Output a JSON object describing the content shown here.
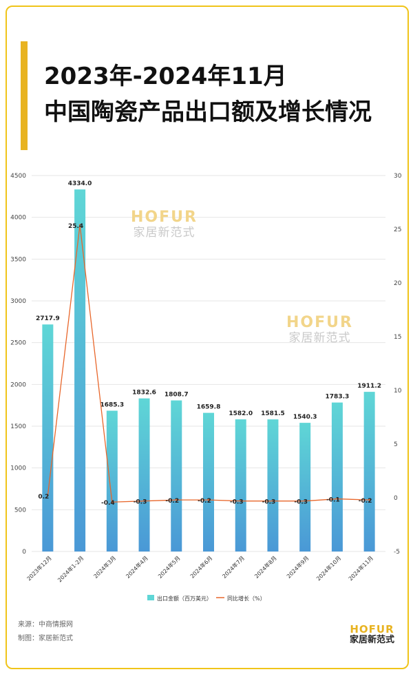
{
  "title_line1": "2023年-2024年11月",
  "title_line2": "中国陶瓷产品出口额及增长情况",
  "source": "来源：中商情报网",
  "maker": "制图：家居新范式",
  "brand": {
    "en": "HOFUR",
    "cn": "家居新范式"
  },
  "colors": {
    "bar_top": "#5fd6d6",
    "bar_bottom": "#4a98d6",
    "line": "#e8662a",
    "accent": "#e8b321",
    "frame": "#f0c419"
  },
  "chart_data": {
    "type": "bar",
    "categories": [
      "2023年12月",
      "2024年1-2月",
      "2024年3月",
      "2024年4月",
      "2024年5月",
      "2024年6月",
      "2024年7月",
      "2024年8月",
      "2024年9月",
      "2024年10月",
      "2024年11月"
    ],
    "series": [
      {
        "name": "出口金额（百万美元）",
        "type": "bar",
        "axis": "left",
        "values": [
          2717.9,
          4334.0,
          1685.3,
          1832.6,
          1808.7,
          1659.8,
          1582.0,
          1581.5,
          1540.3,
          1783.3,
          1911.2
        ]
      },
      {
        "name": "同比增长（%）",
        "type": "line",
        "axis": "right",
        "values": [
          0.2,
          25.4,
          -0.4,
          -0.3,
          -0.2,
          -0.2,
          -0.3,
          -0.3,
          -0.3,
          -0.1,
          -0.2
        ]
      }
    ],
    "left_axis": {
      "min": 0,
      "max": 4500,
      "ticks": [
        0,
        500,
        1000,
        1500,
        2000,
        2500,
        3000,
        3500,
        4000,
        4500
      ]
    },
    "right_axis": {
      "min": -5,
      "max": 30,
      "ticks": [
        -5,
        0,
        5,
        10,
        15,
        20,
        25,
        30
      ]
    },
    "bar_label_texts": [
      "2717.9",
      "4334.0",
      "1685.3",
      "1832.6",
      "1808.7",
      "1659.8",
      "1582.0",
      "1581.5",
      "1540.3",
      "1783.3",
      "1911.2"
    ],
    "line_label_texts": [
      "0.2",
      "25.4",
      "-0.4",
      "-0.3",
      "-0.2",
      "-0.2",
      "-0.3",
      "-0.3",
      "-0.3",
      "-0.1",
      "-0.2"
    ],
    "grid": true,
    "legend_position": "bottom"
  }
}
